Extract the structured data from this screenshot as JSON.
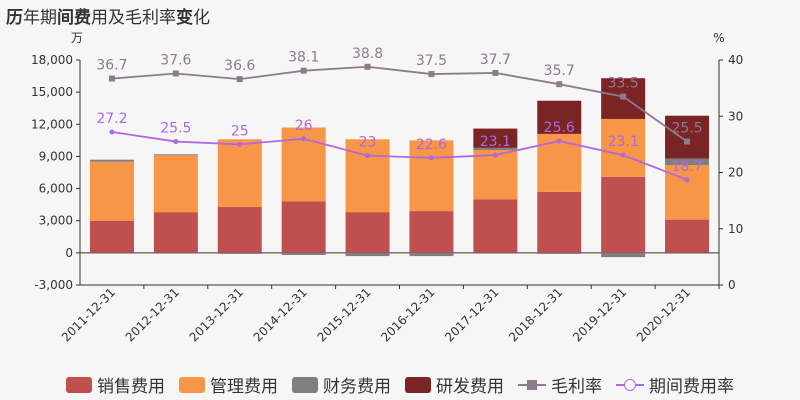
{
  "title": {
    "b1": "历",
    "n1": "年期",
    "b2": "间费",
    "n2": "用及毛利率",
    "b3": "变",
    "n3": "化"
  },
  "colors": {
    "sales": "#c0504d",
    "admin": "#f79646",
    "finance": "#7f7f7f",
    "rd": "#7b2426",
    "gm": "#8e7a8e",
    "er": "#b067e0"
  },
  "chart_data": {
    "type": "bar",
    "stacked": true,
    "categories": [
      "2011-12-31",
      "2012-12-31",
      "2013-12-31",
      "2014-12-31",
      "2015-12-31",
      "2016-12-31",
      "2017-12-31",
      "2018-12-31",
      "2019-12-31",
      "2020-12-31"
    ],
    "left_unit": "万",
    "right_unit": "%",
    "ylim": [
      -3000,
      18000
    ],
    "yticks": [
      -3000,
      0,
      3000,
      6000,
      9000,
      12000,
      15000,
      18000
    ],
    "y2lim": [
      0,
      40
    ],
    "y2ticks": [
      0,
      10,
      20,
      30,
      40
    ],
    "series": [
      {
        "name": "销售费用",
        "values": [
          3000,
          3800,
          4300,
          4800,
          3800,
          3900,
          5000,
          5700,
          7100,
          3100
        ]
      },
      {
        "name": "管理费用",
        "values": [
          5500,
          5300,
          6300,
          6900,
          6800,
          6600,
          4600,
          5400,
          5400,
          5100
        ]
      },
      {
        "name": "财务费用",
        "values": [
          200,
          100,
          -100,
          -200,
          -300,
          -300,
          200,
          -100,
          -400,
          600
        ]
      },
      {
        "name": "研发费用",
        "values": [
          0,
          0,
          0,
          0,
          0,
          0,
          1800,
          3100,
          3800,
          4000
        ]
      }
    ],
    "lines": [
      {
        "name": "毛利率",
        "values": [
          36.7,
          37.6,
          36.6,
          38.1,
          38.8,
          37.5,
          37.7,
          35.7,
          33.5,
          25.5
        ]
      },
      {
        "name": "期间费用率",
        "values": [
          27.2,
          25.5,
          25,
          26,
          23,
          22.6,
          23.1,
          25.6,
          23.1,
          18.7
        ]
      }
    ],
    "legend": [
      "销售费用",
      "管理费用",
      "财务费用",
      "研发费用",
      "毛利率",
      "期间费用率"
    ]
  }
}
